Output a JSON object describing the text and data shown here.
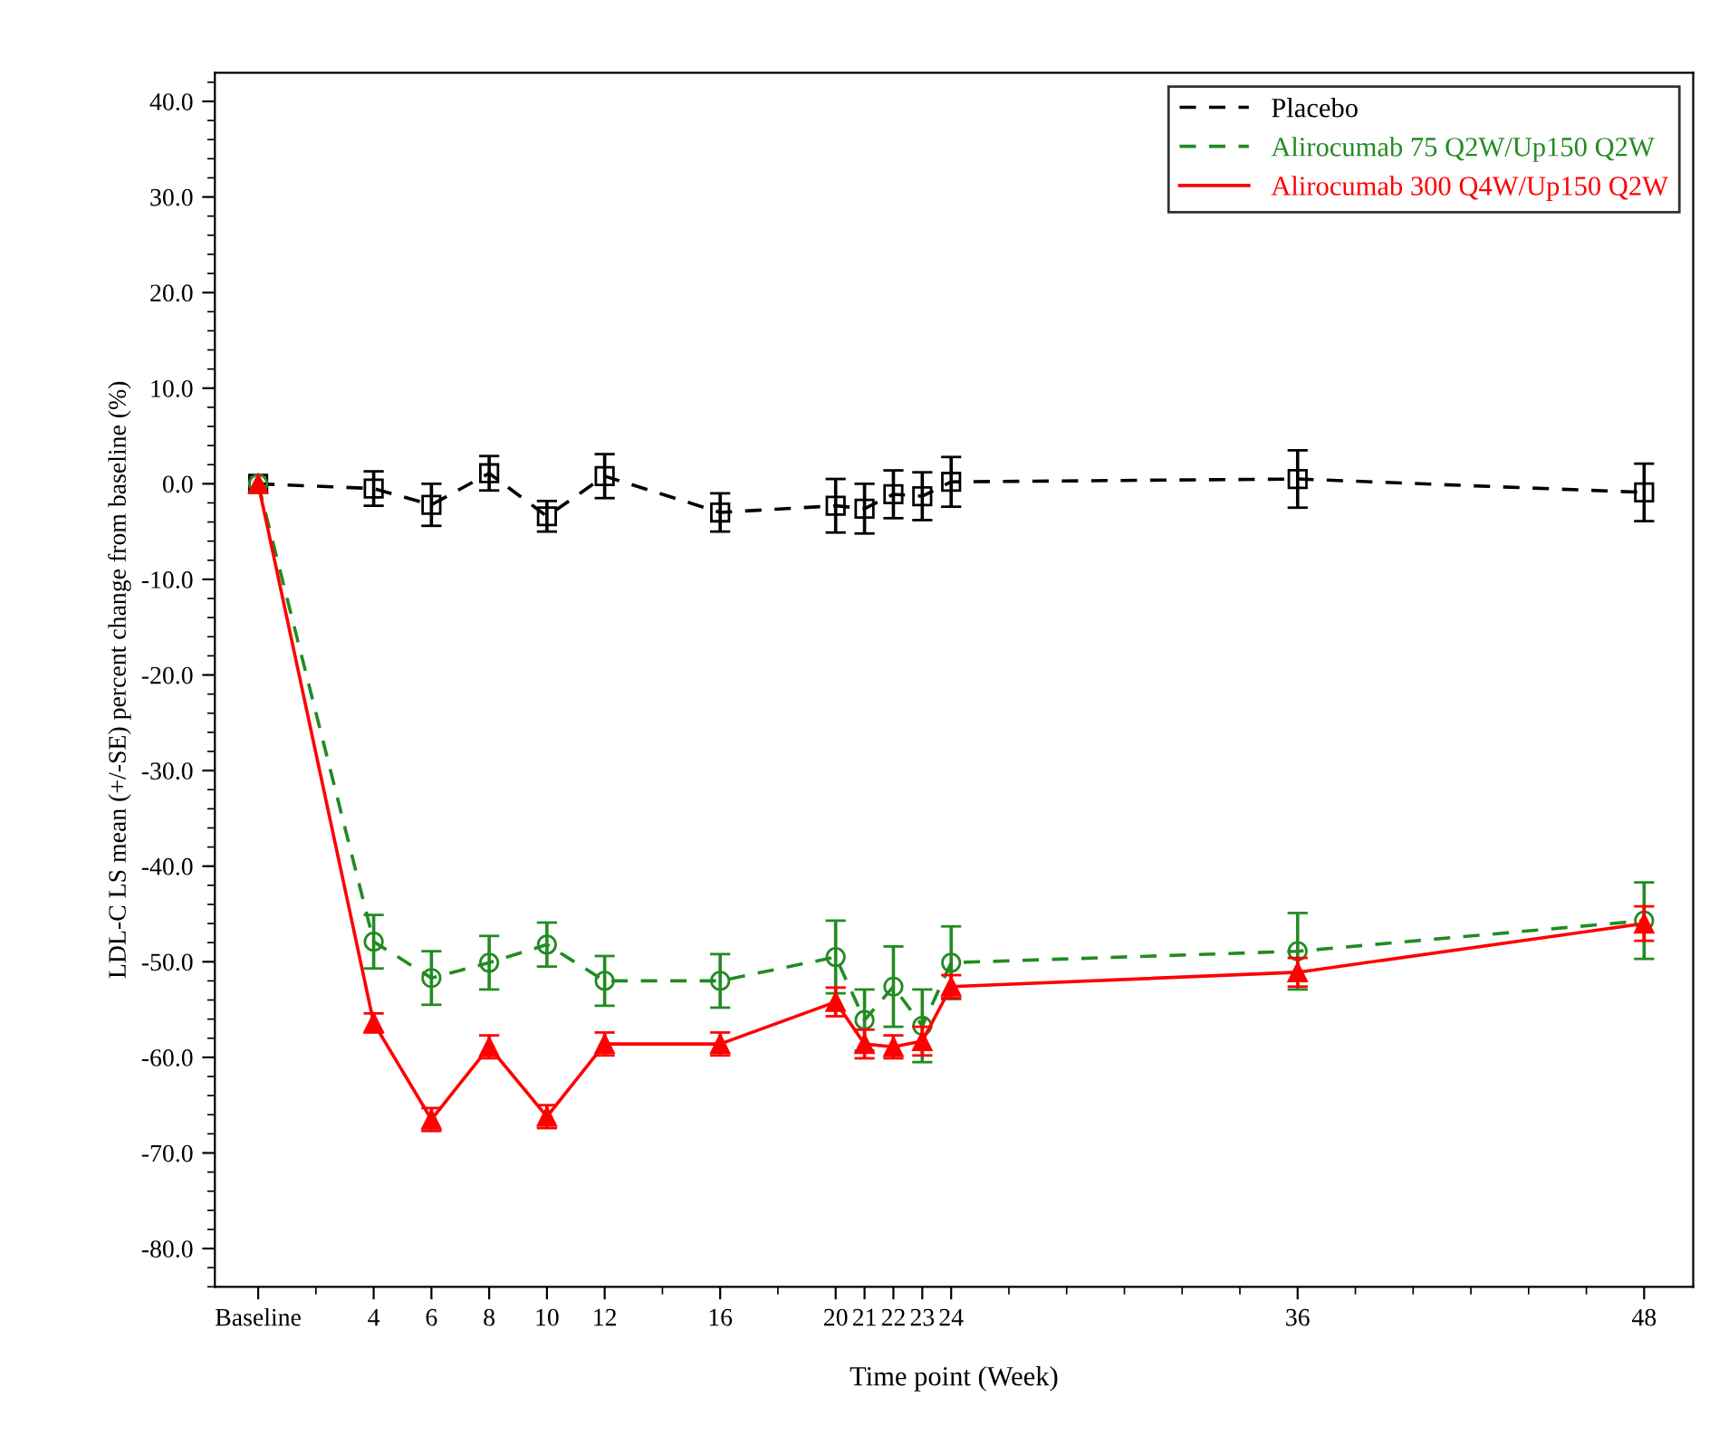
{
  "chart_data": {
    "type": "line",
    "xlabel": "Time point (Week)",
    "ylabel": "LDL-C LS mean (+/-SE) percent change from baseline (%)",
    "xlim": [
      -1.5,
      49.7
    ],
    "ylim": [
      -84,
      43
    ],
    "xticks": [
      {
        "value": 0,
        "label": "Baseline"
      },
      4,
      6,
      8,
      10,
      12,
      16,
      20,
      21,
      22,
      23,
      24,
      36,
      48
    ],
    "yticks": [
      {
        "value": -80,
        "label": "-80.0"
      },
      {
        "value": -70,
        "label": "-70.0"
      },
      {
        "value": -60,
        "label": "-60.0"
      },
      {
        "value": -50,
        "label": "-50.0"
      },
      {
        "value": -40,
        "label": "-40.0"
      },
      {
        "value": -30,
        "label": "-30.0"
      },
      {
        "value": -20,
        "label": "-20.0"
      },
      {
        "value": -10,
        "label": "-10.0"
      },
      {
        "value": 0,
        "label": "0.0"
      },
      {
        "value": 10,
        "label": "10.0"
      },
      {
        "value": 20,
        "label": "20.0"
      },
      {
        "value": 30,
        "label": "30.0"
      },
      {
        "value": 40,
        "label": "40.0"
      }
    ],
    "x": [
      0,
      4,
      6,
      8,
      10,
      12,
      16,
      20,
      21,
      22,
      23,
      24,
      36,
      48
    ],
    "grid": false,
    "legend": "top right",
    "series": [
      {
        "name": "Placebo",
        "color": "#000000",
        "marker": "square",
        "line_style": "dashed",
        "values": [
          0,
          -0.5,
          -2.2,
          1.1,
          -3.4,
          0.8,
          -3.0,
          -2.3,
          -2.6,
          -1.1,
          -1.3,
          0.2,
          0.5,
          -0.9
        ],
        "errors": [
          null,
          1.8,
          2.2,
          1.8,
          1.6,
          2.3,
          2.0,
          2.8,
          2.6,
          2.5,
          2.5,
          2.6,
          3.0,
          3.0
        ]
      },
      {
        "name": "Alirocumab 75 Q2W/Up150 Q2W",
        "color": "#228b22",
        "marker": "circle",
        "line_style": "dashed",
        "values": [
          0,
          -47.9,
          -51.7,
          -50.1,
          -48.2,
          -52.0,
          -52.0,
          -49.5,
          -56.1,
          -52.6,
          -56.7,
          -50.1,
          -48.9,
          -45.7
        ],
        "errors": [
          null,
          2.8,
          2.8,
          2.8,
          2.3,
          2.6,
          2.8,
          3.8,
          3.2,
          4.2,
          3.8,
          3.8,
          4.0,
          4.0
        ]
      },
      {
        "name": "Alirocumab 300 Q4W/Up150 Q2W",
        "color": "#ff0000",
        "marker": "triangle",
        "line_style": "solid",
        "values": [
          0,
          -56.4,
          -66.5,
          -58.9,
          -66.2,
          -58.6,
          -58.6,
          -54.2,
          -58.6,
          -58.9,
          -58.3,
          -52.6,
          -51.1,
          -46.0
        ],
        "errors": [
          null,
          1.0,
          1.2,
          1.2,
          1.2,
          1.2,
          1.2,
          1.5,
          1.5,
          1.2,
          1.5,
          1.2,
          1.5,
          1.8
        ]
      }
    ]
  }
}
